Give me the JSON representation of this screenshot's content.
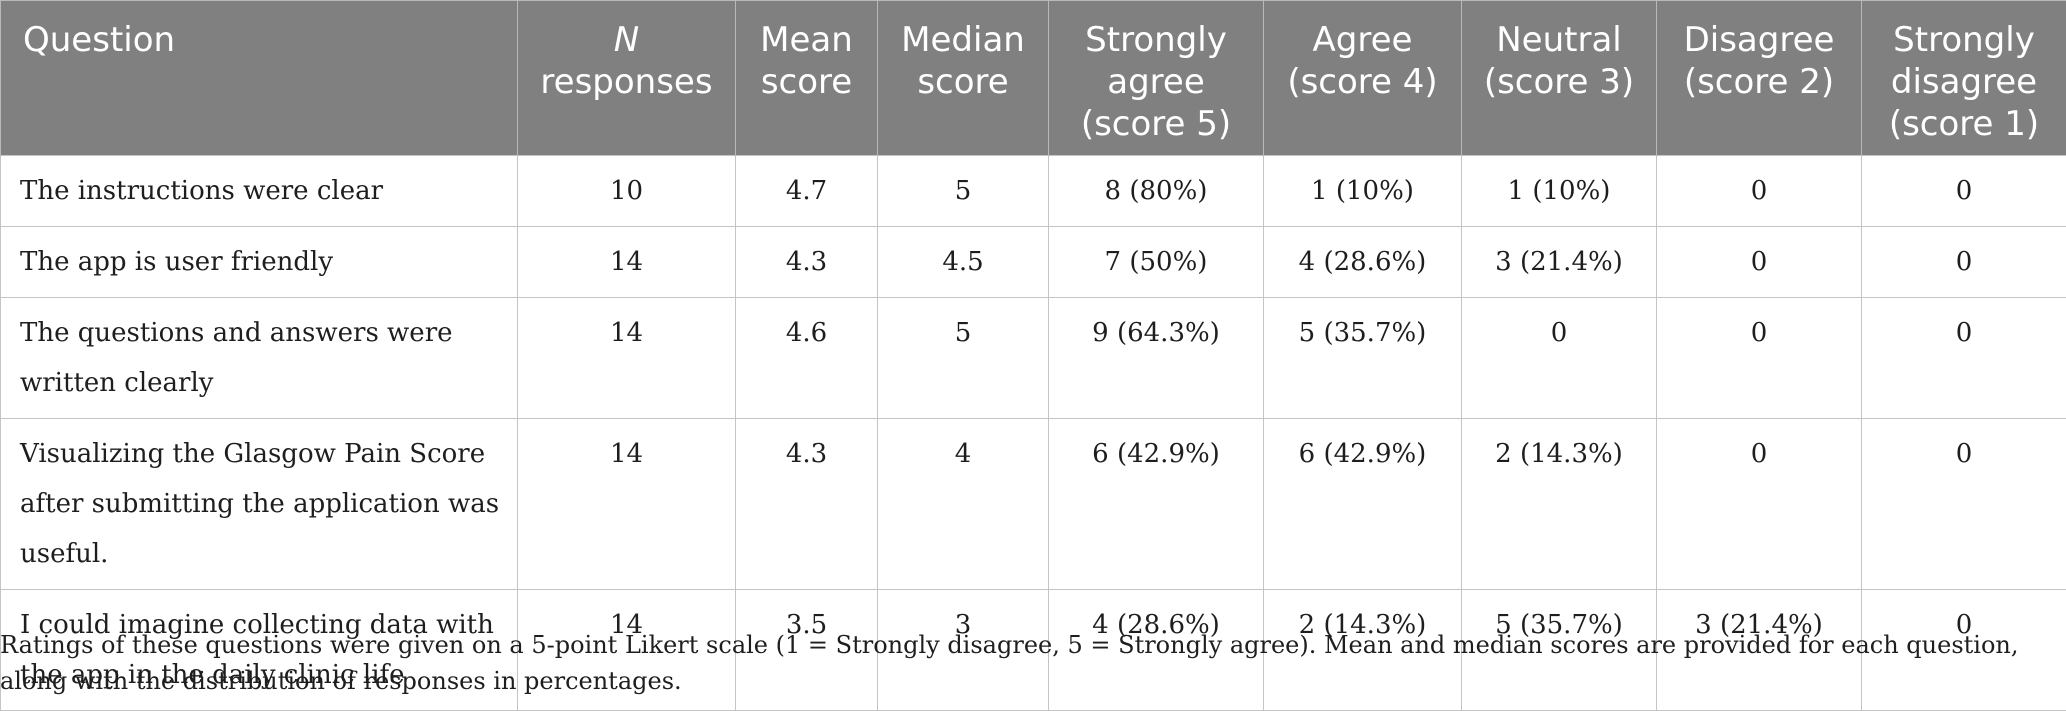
{
  "headers": [
    {
      "text": "Question",
      "prefix": "",
      "suffix": ""
    },
    {
      "prefix": "N",
      "suffix": "responses"
    },
    {
      "text": "Mean score"
    },
    {
      "text": "Median score"
    },
    {
      "text": "Strongly agree (score 5)"
    },
    {
      "text": "Agree (score 4)"
    },
    {
      "text": "Neutral (score 3)"
    },
    {
      "text": "Disagree (score 2)"
    },
    {
      "text": "Strongly disagree (score 1)"
    }
  ],
  "rows": [
    [
      "The instructions were clear",
      "10",
      "4.7",
      "5",
      "8 (80%)",
      "1 (10%)",
      "1 (10%)",
      "0",
      "0"
    ],
    [
      "The app is user friendly",
      "14",
      "4.3",
      "4.5",
      "7 (50%)",
      "4 (28.6%)",
      "3 (21.4%)",
      "0",
      "0"
    ],
    [
      "The questions and answers were written clearly",
      "14",
      "4.6",
      "5",
      "9 (64.3%)",
      "5 (35.7%)",
      "0",
      "0",
      "0"
    ],
    [
      "Visualizing the Glasgow Pain Score after submitting the application was useful.",
      "14",
      "4.3",
      "4",
      "6 (42.9%)",
      "6 (42.9%)",
      "2 (14.3%)",
      "0",
      "0"
    ],
    [
      "I could imagine collecting data with the app in the daily clinic life",
      "14",
      "3.5",
      "3",
      "4 (28.6%)",
      "2 (14.3%)",
      "5 (35.7%)",
      "3 (21.4%)",
      "0"
    ]
  ],
  "footnote": "Ratings of these questions were given on a 5-point Likert scale (1 = Strongly disagree, 5 = Strongly agree). Mean and median scores are provided for each question, along with the distribution of responses in percentages.",
  "colors": {
    "header_bg": "#7f807f",
    "header_text": "#ffffff",
    "grid": "#c4c4c4"
  }
}
